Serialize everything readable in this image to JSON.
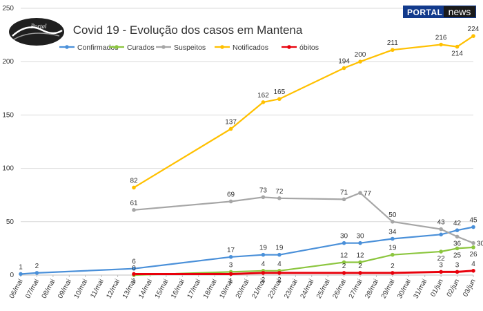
{
  "brand": {
    "portal": "PORTAL",
    "news": "news",
    "logo_text": "Portal"
  },
  "chart_data": {
    "type": "line",
    "title": "Covid 19 - Evolução dos casos em Mantena",
    "xlabel": "",
    "ylabel": "",
    "ylim": [
      0,
      250
    ],
    "yticks": [
      0,
      50,
      100,
      150,
      200,
      250
    ],
    "grid": true,
    "legend_position": "top",
    "categories": [
      "06/mai",
      "07/mai",
      "08/mai",
      "09/mai",
      "10/mai",
      "11/mai",
      "12/mai",
      "13/mai",
      "14/mai",
      "15/mai",
      "16/mai",
      "17/mai",
      "18/mai",
      "19/mai",
      "20/mai",
      "21/mai",
      "22/mai",
      "23/mai",
      "24/mai",
      "25/mai",
      "26/mai",
      "27/mai",
      "28/mai",
      "29/mai",
      "30/mai",
      "31/mai",
      "01/jun",
      "02/jun",
      "03/jun"
    ],
    "series": [
      {
        "name": "Confirmados",
        "color": "#4a90d9",
        "points": [
          [
            0,
            1
          ],
          [
            1,
            2
          ],
          [
            7,
            6
          ],
          [
            13,
            17
          ],
          [
            15,
            19
          ],
          [
            16,
            19
          ],
          [
            20,
            30
          ],
          [
            21,
            30
          ],
          [
            23,
            34
          ],
          [
            26,
            38
          ],
          [
            27,
            42
          ],
          [
            28,
            45
          ]
        ],
        "labels": [
          [
            0,
            1,
            "above"
          ],
          [
            1,
            2,
            "above"
          ],
          [
            7,
            6,
            "above"
          ],
          [
            13,
            17,
            "above"
          ],
          [
            15,
            19,
            "above"
          ],
          [
            16,
            19,
            "above"
          ],
          [
            20,
            30,
            "above"
          ],
          [
            21,
            30,
            "above"
          ],
          [
            23,
            34,
            "above"
          ],
          [
            27,
            42,
            "above"
          ],
          [
            28,
            45,
            "above"
          ]
        ]
      },
      {
        "name": "Curados",
        "color": "#8cc63f",
        "points": [
          [
            7,
            0
          ],
          [
            13,
            3
          ],
          [
            15,
            4
          ],
          [
            16,
            4
          ],
          [
            20,
            12
          ],
          [
            21,
            12
          ],
          [
            23,
            19
          ],
          [
            26,
            22
          ],
          [
            27,
            25
          ],
          [
            28,
            26
          ]
        ],
        "labels": [
          [
            7,
            0,
            "above"
          ],
          [
            13,
            3,
            "above"
          ],
          [
            15,
            4,
            "above"
          ],
          [
            16,
            4,
            "above"
          ],
          [
            20,
            12,
            "above"
          ],
          [
            21,
            12,
            "above"
          ],
          [
            23,
            19,
            "above"
          ],
          [
            26,
            22,
            "below"
          ],
          [
            27,
            25,
            "below"
          ],
          [
            28,
            26,
            "below"
          ]
        ]
      },
      {
        "name": "Suspeitos",
        "color": "#a6a6a6",
        "points": [
          [
            7,
            61
          ],
          [
            13,
            69
          ],
          [
            15,
            73
          ],
          [
            16,
            72
          ],
          [
            20,
            71
          ],
          [
            21,
            77
          ],
          [
            23,
            50
          ],
          [
            26,
            43
          ],
          [
            27,
            36
          ],
          [
            28,
            30
          ]
        ],
        "labels": [
          [
            7,
            61,
            "above"
          ],
          [
            13,
            69,
            "above"
          ],
          [
            15,
            73,
            "above"
          ],
          [
            16,
            72,
            "above"
          ],
          [
            20,
            71,
            "above"
          ],
          [
            21,
            77,
            "right"
          ],
          [
            23,
            50,
            "above"
          ],
          [
            26,
            43,
            "above"
          ],
          [
            27,
            36,
            "below"
          ],
          [
            28,
            30,
            "right"
          ]
        ]
      },
      {
        "name": "Notificados",
        "color": "#ffc000",
        "points": [
          [
            7,
            82
          ],
          [
            13,
            137
          ],
          [
            15,
            162
          ],
          [
            16,
            165
          ],
          [
            20,
            194
          ],
          [
            21,
            200
          ],
          [
            23,
            211
          ],
          [
            26,
            216
          ],
          [
            27,
            214
          ],
          [
            28,
            224
          ]
        ],
        "labels": [
          [
            7,
            82,
            "above"
          ],
          [
            13,
            137,
            "above"
          ],
          [
            15,
            162,
            "above"
          ],
          [
            16,
            165,
            "above"
          ],
          [
            20,
            194,
            "above"
          ],
          [
            21,
            200,
            "above"
          ],
          [
            23,
            211,
            "above"
          ],
          [
            26,
            216,
            "above"
          ],
          [
            27,
            214,
            "below"
          ],
          [
            28,
            224,
            "above"
          ]
        ]
      },
      {
        "name": "óbitos",
        "color": "#e8000b",
        "points": [
          [
            7,
            1
          ],
          [
            13,
            1
          ],
          [
            15,
            2
          ],
          [
            16,
            2
          ],
          [
            20,
            2
          ],
          [
            21,
            2
          ],
          [
            23,
            2
          ],
          [
            26,
            3
          ],
          [
            27,
            3
          ],
          [
            28,
            4
          ]
        ],
        "labels": [
          [
            7,
            1,
            "below"
          ],
          [
            13,
            1,
            "below"
          ],
          [
            15,
            2,
            "below"
          ],
          [
            16,
            2,
            "below"
          ],
          [
            20,
            2,
            "above"
          ],
          [
            21,
            2,
            "above"
          ],
          [
            23,
            2,
            "above"
          ],
          [
            26,
            3,
            "above"
          ],
          [
            27,
            3,
            "above"
          ],
          [
            28,
            4,
            "above"
          ]
        ]
      }
    ]
  }
}
